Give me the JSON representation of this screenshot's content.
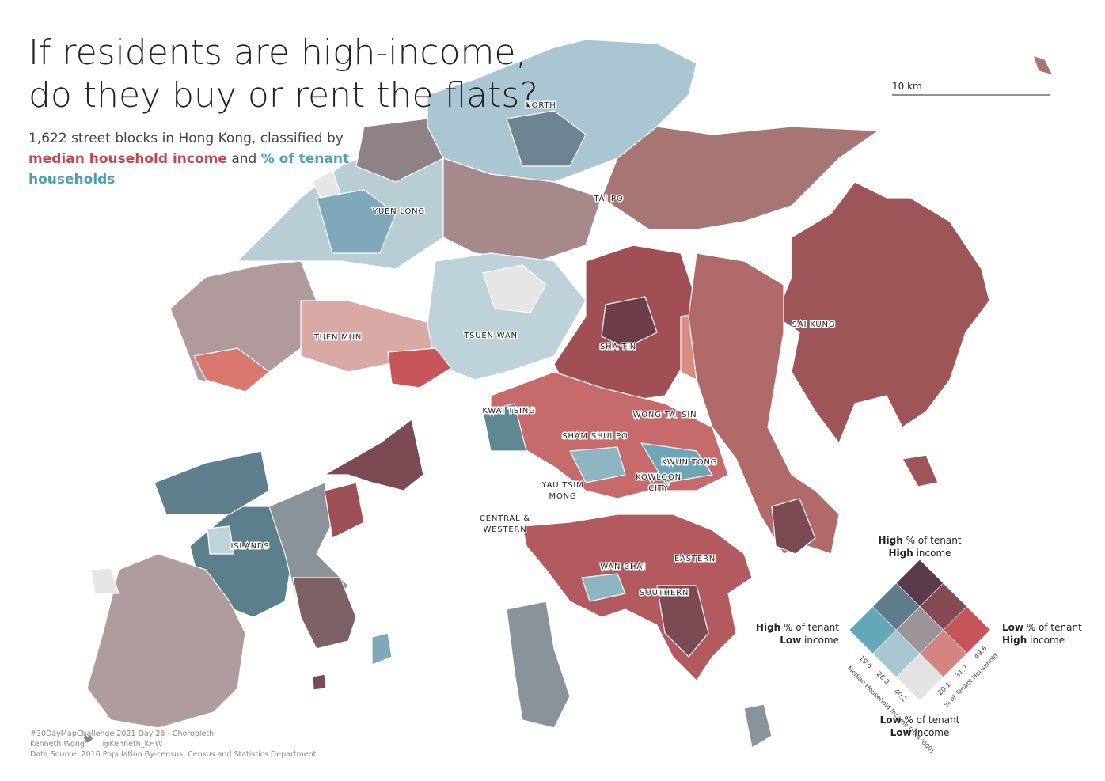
{
  "header": {
    "title": "If residents are high-income, do they buy or rent the flats?",
    "subtitle_lead": "1,622 street blocks in Hong Kong, classified by",
    "subtitle_income": "median household income",
    "subtitle_and": "and",
    "subtitle_tenant": "% of tenant households"
  },
  "scale_bar": "10 km",
  "districts": [
    {
      "lines": [
        "NORTH"
      ]
    },
    {
      "lines": [
        "YUEN LONG"
      ]
    },
    {
      "lines": [
        "TAI PO"
      ]
    },
    {
      "lines": [
        "TUEN MUN"
      ]
    },
    {
      "lines": [
        "TSUEN WAN"
      ]
    },
    {
      "lines": [
        "SHA TIN"
      ]
    },
    {
      "lines": [
        "SAI KUNG"
      ]
    },
    {
      "lines": [
        "KWAI TSING"
      ]
    },
    {
      "lines": [
        "WONG TAI SIN"
      ]
    },
    {
      "lines": [
        "SHAM SHUI PO"
      ]
    },
    {
      "lines": [
        "KWUN TONG"
      ]
    },
    {
      "lines": [
        "YAU TSIM",
        "MONG"
      ]
    },
    {
      "lines": [
        "KOWLOON",
        "CITY"
      ]
    },
    {
      "lines": [
        "CENTRAL &",
        "WESTERN"
      ]
    },
    {
      "lines": [
        "ISLANDS"
      ]
    },
    {
      "lines": [
        "WAN CHAI"
      ]
    },
    {
      "lines": [
        "EASTERN"
      ]
    },
    {
      "lines": [
        "SOUTHERN"
      ]
    }
  ],
  "legend": {
    "top": {
      "strong1": "High",
      "text1": "% of tenant",
      "strong2": "High",
      "text2": "income"
    },
    "left": {
      "strong1": "High",
      "text1": "% of tenant",
      "strong2": "Low",
      "text2": "income"
    },
    "right": {
      "strong1": "Low",
      "text1": "% of tenant",
      "strong2": "High",
      "text2": "income"
    },
    "bottom": {
      "strong1": "Low",
      "text1": "% of tenant",
      "strong2": "Low",
      "text2": "income"
    },
    "income_title": "Median Household Income (HK$ '000)",
    "income_ticks": [
      19.6,
      26.8,
      40.2
    ],
    "tenant_title": "% of Tenant Household",
    "tenant_ticks": [
      20.1,
      31.7,
      49.6
    ]
  },
  "footer": {
    "line1": "#30DayMapChallenge 2021 Day 26 - Choropleth",
    "author": "Kenneth Wong",
    "handle": "@Kenneth_KHW",
    "source": "Data Source: 2016 Population By-census, Census and Statistics Department"
  }
}
